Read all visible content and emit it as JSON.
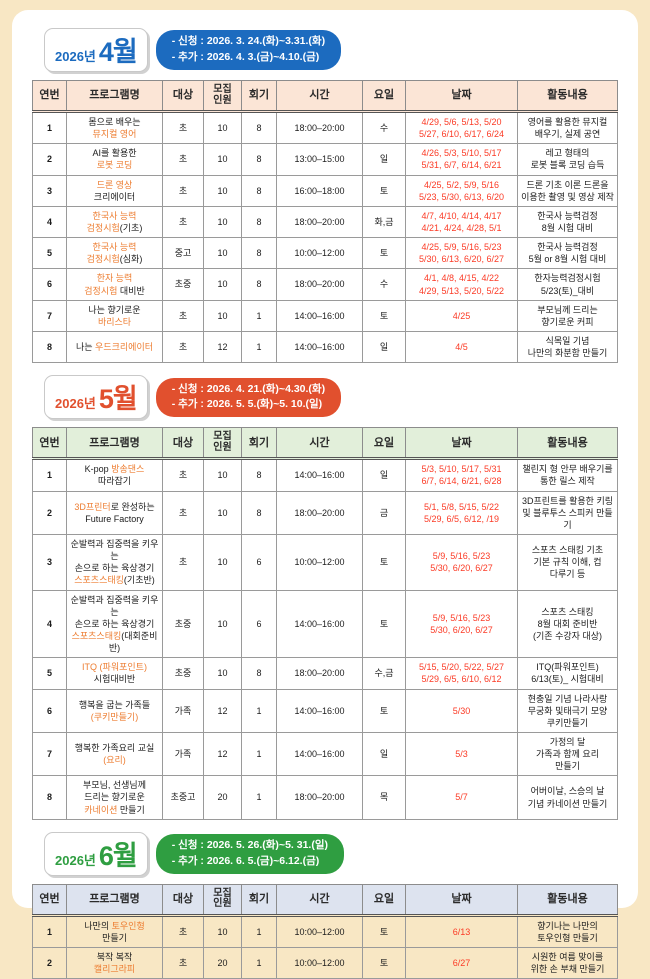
{
  "columns": [
    "연번",
    "프로그램명",
    "대상",
    "모집|인원",
    "회기",
    "시간",
    "요일",
    "날짜",
    "활동내용"
  ],
  "colors": {
    "april_accent": "#1c6bbf",
    "april_header_bg": "#fbe5d6",
    "may_accent": "#e1502e",
    "may_header_bg": "#e2efda",
    "june_accent": "#2f9e41",
    "june_header_bg": "#dde3ef",
    "program_highlight": "#ed7d31",
    "date_red": "#fb3a25"
  },
  "sections": [
    {
      "id": "april",
      "accent": "#1c6bbf",
      "header_bg": "#fbe5d6",
      "badge": {
        "year": "2026년",
        "month": "4월"
      },
      "pill": [
        "- 신청 : 2026. 3. 24.(화)~3.31.(화)",
        "- 추가 : 2026. 4. 3.(금)~4.10.(금)"
      ],
      "tall": false,
      "rows": [
        {
          "no": "1",
          "program": [
            [
              {
                "t": "몸으로 배우는",
                "hl": false
              }
            ],
            [
              {
                "t": "뮤지컬 영어",
                "hl": true
              }
            ]
          ],
          "target": "초",
          "capacity": "10",
          "sessions": "8",
          "time": "18:00–20:00",
          "day": "수",
          "dates": [
            "4/29, 5/6, 5/13, 5/20",
            "5/27, 6/10, 6/17, 6/24"
          ],
          "activity": [
            "영어를 활용한 뮤지컬",
            "배우기, 실제 공연"
          ]
        },
        {
          "no": "2",
          "program": [
            [
              {
                "t": "AI를 활용한",
                "hl": false
              }
            ],
            [
              {
                "t": "로봇 코딩",
                "hl": true
              }
            ]
          ],
          "target": "초",
          "capacity": "10",
          "sessions": "8",
          "time": "13:00–15:00",
          "day": "일",
          "dates": [
            "4/26, 5/3, 5/10, 5/17",
            "5/31, 6/7, 6/14, 6/21"
          ],
          "activity": [
            "레고 형태의",
            "로봇 블록 코딩 습득"
          ]
        },
        {
          "no": "3",
          "program": [
            [
              {
                "t": "드론 영상",
                "hl": true
              }
            ],
            [
              {
                "t": "크리에이터",
                "hl": false
              }
            ]
          ],
          "target": "초",
          "capacity": "10",
          "sessions": "8",
          "time": "16:00–18:00",
          "day": "토",
          "dates": [
            "4/25, 5/2, 5/9, 5/16",
            "5/23, 5/30, 6/13, 6/20"
          ],
          "activity": [
            "드론 기초 이론 드론을",
            "이용한 촬영 및 영상 제작"
          ]
        },
        {
          "no": "4",
          "program": [
            [
              {
                "t": "한국사 능력",
                "hl": true
              }
            ],
            [
              {
                "t": "검정시험",
                "hl": true
              },
              {
                "t": "(기초)",
                "hl": false
              }
            ]
          ],
          "target": "초",
          "capacity": "10",
          "sessions": "8",
          "time": "18:00–20:00",
          "day": "화,금",
          "dates": [
            "4/7, 4/10, 4/14, 4/17",
            "4/21, 4/24, 4/28, 5/1"
          ],
          "activity": [
            "한국사 능력검정",
            "8월 시험 대비"
          ]
        },
        {
          "no": "5",
          "program": [
            [
              {
                "t": "한국사 능력",
                "hl": true
              }
            ],
            [
              {
                "t": "검정시험",
                "hl": true
              },
              {
                "t": "(심화)",
                "hl": false
              }
            ]
          ],
          "target": "중고",
          "capacity": "10",
          "sessions": "8",
          "time": "10:00–12:00",
          "day": "토",
          "dates": [
            "4/25, 5/9, 5/16, 5/23",
            "5/30, 6/13, 6/20, 6/27"
          ],
          "activity": [
            "한국사 능력검정",
            "5월 or 8월 시험 대비"
          ]
        },
        {
          "no": "6",
          "program": [
            [
              {
                "t": "한자 능력",
                "hl": true
              }
            ],
            [
              {
                "t": "검정시험",
                "hl": true
              },
              {
                "t": " 대비반",
                "hl": false
              }
            ]
          ],
          "target": "초중",
          "capacity": "10",
          "sessions": "8",
          "time": "18:00–20:00",
          "day": "수",
          "dates": [
            "4/1, 4/8, 4/15, 4/22",
            "4/29, 5/13, 5/20, 5/22"
          ],
          "activity": [
            "한자능력검정시험",
            "5/23(토)_대비"
          ]
        },
        {
          "no": "7",
          "program": [
            [
              {
                "t": "나는 향기로운",
                "hl": false
              }
            ],
            [
              {
                "t": "바리스타",
                "hl": true
              }
            ]
          ],
          "target": "초",
          "capacity": "10",
          "sessions": "1",
          "time": "14:00–16:00",
          "day": "토",
          "dates": [
            "4/25"
          ],
          "activity": [
            "부모님께 드리는",
            "향기로운 커피"
          ]
        },
        {
          "no": "8",
          "program": [
            [
              {
                "t": "나는 ",
                "hl": false
              },
              {
                "t": "우드크리에이터",
                "hl": true
              }
            ]
          ],
          "target": "초",
          "capacity": "12",
          "sessions": "1",
          "time": "14:00–16:00",
          "day": "일",
          "dates": [
            "4/5"
          ],
          "activity": [
            "식목일 기념",
            "나만의 화분함 만들기"
          ]
        }
      ]
    },
    {
      "id": "may",
      "accent": "#e1502e",
      "header_bg": "#e2efda",
      "badge": {
        "year": "2026년",
        "month": "5월"
      },
      "pill": [
        "- 신청 : 2026. 4. 21.(화)~4.30.(화)",
        "- 추가 : 2026. 5. 5.(화)~5. 10.(일)"
      ],
      "tall": false,
      "rows": [
        {
          "no": "1",
          "program": [
            [
              {
                "t": "K-pop ",
                "hl": false
              },
              {
                "t": "방송댄스",
                "hl": true
              }
            ],
            [
              {
                "t": "따라잡기",
                "hl": false
              }
            ]
          ],
          "target": "초",
          "capacity": "10",
          "sessions": "8",
          "time": "14:00–16:00",
          "day": "일",
          "dates": [
            "5/3, 5/10, 5/17, 5/31",
            "6/7, 6/14, 6/21, 6/28"
          ],
          "activity": [
            "챌린지 형 안무 배우기를",
            "통한 릴스 제작"
          ]
        },
        {
          "no": "2",
          "program": [
            [
              {
                "t": "3D프린터",
                "hl": true
              },
              {
                "t": "로 완성하는",
                "hl": false
              }
            ],
            [
              {
                "t": "Future Factory",
                "hl": false
              }
            ]
          ],
          "target": "초",
          "capacity": "10",
          "sessions": "8",
          "time": "18:00–20:00",
          "day": "금",
          "dates": [
            "5/1, 5/8, 5/15, 5/22",
            "5/29, 6/5, 6/12, /19"
          ],
          "activity": [
            "3D프린트를 활용한 키링",
            "및 블루투스 스피커 만들기"
          ]
        },
        {
          "no": "3",
          "program": [
            [
              {
                "t": "순발력과 집중력을 키우는",
                "hl": false
              }
            ],
            [
              {
                "t": "손으로 하는 육상경기",
                "hl": false
              }
            ],
            [
              {
                "t": "스포츠스태킹",
                "hl": true
              },
              {
                "t": "(기초반)",
                "hl": false
              }
            ]
          ],
          "target": "초",
          "capacity": "10",
          "sessions": "6",
          "time": "10:00–12:00",
          "day": "토",
          "dates": [
            "5/9, 5/16, 5/23",
            "5/30, 6/20, 6/27"
          ],
          "activity": [
            "스포츠 스태킹 기초",
            "기본 규칙 이해, 컵",
            "다루기 등"
          ]
        },
        {
          "no": "4",
          "program": [
            [
              {
                "t": "순발력과 집중력을 키우는",
                "hl": false
              }
            ],
            [
              {
                "t": "손으로 하는 육상경기",
                "hl": false
              }
            ],
            [
              {
                "t": "스포츠스태킹",
                "hl": true
              },
              {
                "t": "(대회준비반)",
                "hl": false
              }
            ]
          ],
          "target": "초중",
          "capacity": "10",
          "sessions": "6",
          "time": "14:00–16:00",
          "day": "토",
          "dates": [
            "5/9, 5/16, 5/23",
            "5/30, 6/20, 6/27"
          ],
          "activity": [
            "스포츠 스태킹",
            "8월 대회 준비반",
            "(기존 수강자 대상)"
          ]
        },
        {
          "no": "5",
          "program": [
            [
              {
                "t": "ITQ (파워포인트)",
                "hl": true
              }
            ],
            [
              {
                "t": "시험대비반",
                "hl": false
              }
            ]
          ],
          "target": "초중",
          "capacity": "10",
          "sessions": "8",
          "time": "18:00–20:00",
          "day": "수,금",
          "dates": [
            "5/15, 5/20, 5/22, 5/27",
            "5/29, 6/5, 6/10, 6/12"
          ],
          "activity": [
            "ITQ(파워포인트)",
            "6/13(토)_ 시험대비"
          ]
        },
        {
          "no": "6",
          "program": [
            [
              {
                "t": "행복을 굽는 가족들",
                "hl": false
              }
            ],
            [
              {
                "t": "(쿠키만들기)",
                "hl": true
              }
            ]
          ],
          "target": "가족",
          "capacity": "12",
          "sessions": "1",
          "time": "14:00–16:00",
          "day": "토",
          "dates": [
            "5/30"
          ],
          "activity": [
            "현충일 기념 나라사랑",
            "무궁화 및태극기 모양",
            "쿠키만들기"
          ]
        },
        {
          "no": "7",
          "program": [
            [
              {
                "t": "행복한 가족요리 교실",
                "hl": false
              }
            ],
            [
              {
                "t": "(요리)",
                "hl": true
              }
            ]
          ],
          "target": "가족",
          "capacity": "12",
          "sessions": "1",
          "time": "14:00–16:00",
          "day": "일",
          "dates": [
            "5/3"
          ],
          "activity": [
            "가정의 달",
            "가족과 함께 요리",
            "만들기"
          ]
        },
        {
          "no": "8",
          "program": [
            [
              {
                "t": "부모님, 선생님께",
                "hl": false
              }
            ],
            [
              {
                "t": "드리는 향기로운",
                "hl": false
              }
            ],
            [
              {
                "t": "카네이션",
                "hl": true
              },
              {
                "t": " 만들기",
                "hl": false
              }
            ]
          ],
          "target": "초중고",
          "capacity": "20",
          "sessions": "1",
          "time": "18:00–20:00",
          "day": "목",
          "dates": [
            "5/7"
          ],
          "activity": [
            "어버이날, 스승의 날",
            "기념 카네이션 만들기"
          ]
        }
      ]
    },
    {
      "id": "june",
      "accent": "#2f9e41",
      "header_bg": "#dde3ef",
      "badge": {
        "year": "2026년",
        "month": "6월"
      },
      "pill": [
        "- 신청 : 2026. 5. 26.(화)~5. 31.(일)",
        "- 추가 : 2026. 6. 5.(금)~6.12.(금)"
      ],
      "tall": true,
      "rows": [
        {
          "no": "1",
          "program": [
            [
              {
                "t": "나만의 ",
                "hl": false
              },
              {
                "t": "토우인형",
                "hl": true
              }
            ],
            [
              {
                "t": "만들기",
                "hl": false
              }
            ]
          ],
          "target": "초",
          "capacity": "10",
          "sessions": "1",
          "time": "10:00–12:00",
          "day": "토",
          "dates": [
            "6/13"
          ],
          "activity": [
            "향기나는 나만의",
            "토우인형 만들기"
          ]
        },
        {
          "no": "2",
          "program": [
            [
              {
                "t": "북작 복작",
                "hl": false
              }
            ],
            [
              {
                "t": "캘리그라피",
                "hl": true
              }
            ]
          ],
          "target": "초",
          "capacity": "20",
          "sessions": "1",
          "time": "10:00–12:00",
          "day": "토",
          "dates": [
            "6/27"
          ],
          "activity": [
            "시원한 여름 맞이를",
            "위한 손 부채 만들기"
          ]
        }
      ]
    }
  ]
}
